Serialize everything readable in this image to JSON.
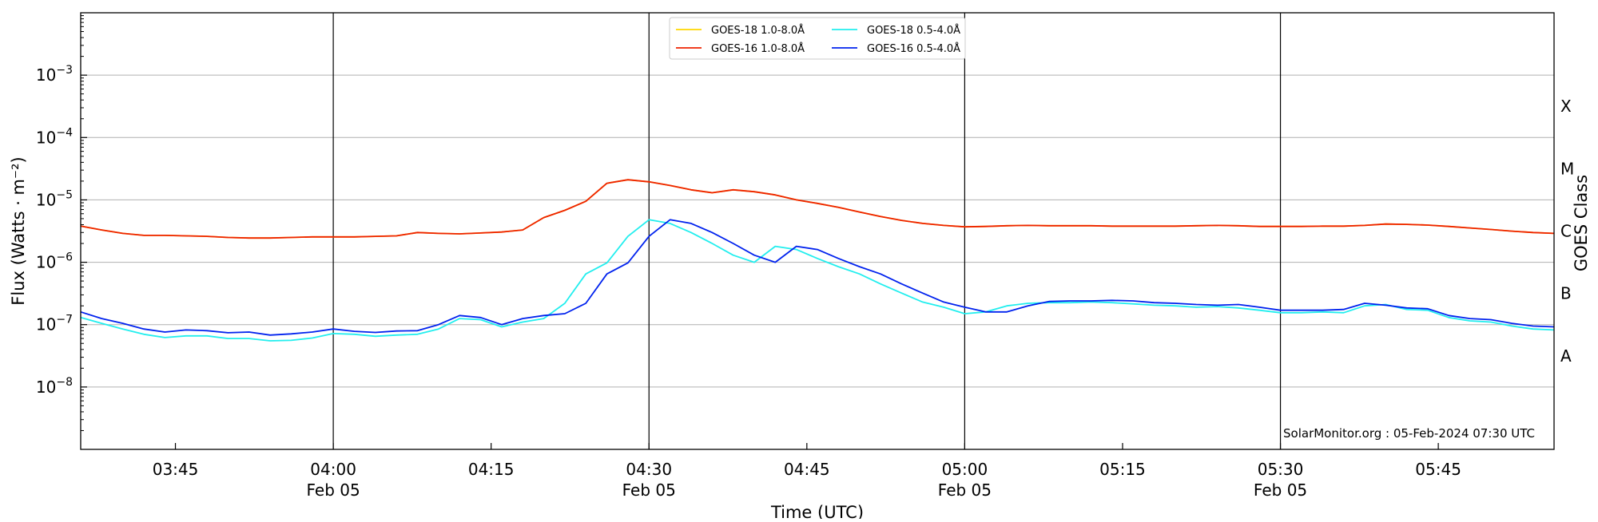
{
  "chart_data": {
    "type": "line",
    "xlabel": "Time (UTC)",
    "ylabel": "Flux (Watts · m⁻²)",
    "y2label": "GOES Class",
    "credit": "SolarMonitor.org : 05-Feb-2024 07:30 UTC",
    "x_unit": "UTC time, 2024-02-05",
    "xlim": [
      "03:36",
      "05:56"
    ],
    "ylim": [
      1e-09,
      0.01
    ],
    "yscale": "log",
    "grid": "horizontal gridlines at each decade; vertical lines at each half hour",
    "legend": "top-center, two columns",
    "x_ticks": [
      {
        "time": "03:45",
        "label": "03:45",
        "date": ""
      },
      {
        "time": "04:00",
        "label": "04:00",
        "date": "Feb 05"
      },
      {
        "time": "04:15",
        "label": "04:15",
        "date": ""
      },
      {
        "time": "04:30",
        "label": "04:30",
        "date": "Feb 05"
      },
      {
        "time": "04:45",
        "label": "04:45",
        "date": ""
      },
      {
        "time": "05:00",
        "label": "05:00",
        "date": "Feb 05"
      },
      {
        "time": "05:15",
        "label": "05:15",
        "date": ""
      },
      {
        "time": "05:30",
        "label": "05:30",
        "date": "Feb 05"
      },
      {
        "time": "05:45",
        "label": "05:45",
        "date": ""
      }
    ],
    "vlines": [
      "04:00",
      "04:30",
      "05:00",
      "05:30"
    ],
    "y_ticks": [
      {
        "value": 1e-08,
        "base": "10",
        "exp": "−8"
      },
      {
        "value": 1e-07,
        "base": "10",
        "exp": "−7"
      },
      {
        "value": 1e-06,
        "base": "10",
        "exp": "−6"
      },
      {
        "value": 1e-05,
        "base": "10",
        "exp": "−5"
      },
      {
        "value": 0.0001,
        "base": "10",
        "exp": "−4"
      },
      {
        "value": 0.001,
        "base": "10",
        "exp": "−3"
      }
    ],
    "classes": [
      {
        "label": "A",
        "value": 3.16e-08
      },
      {
        "label": "B",
        "value": 3.16e-07
      },
      {
        "label": "C",
        "value": 3.16e-06
      },
      {
        "label": "M",
        "value": 3.16e-05
      },
      {
        "label": "X",
        "value": 0.000316
      }
    ],
    "x": [
      "03:36",
      "03:38",
      "03:40",
      "03:42",
      "03:44",
      "03:46",
      "03:48",
      "03:50",
      "03:52",
      "03:54",
      "03:56",
      "03:58",
      "04:00",
      "04:02",
      "04:04",
      "04:06",
      "04:08",
      "04:10",
      "04:12",
      "04:14",
      "04:16",
      "04:18",
      "04:20",
      "04:22",
      "04:24",
      "04:26",
      "04:28",
      "04:30",
      "04:32",
      "04:34",
      "04:36",
      "04:38",
      "04:40",
      "04:42",
      "04:44",
      "04:46",
      "04:48",
      "04:50",
      "04:52",
      "04:54",
      "04:56",
      "04:58",
      "05:00",
      "05:02",
      "05:04",
      "05:06",
      "05:08",
      "05:10",
      "05:12",
      "05:14",
      "05:16",
      "05:18",
      "05:20",
      "05:22",
      "05:24",
      "05:26",
      "05:28",
      "05:30",
      "05:32",
      "05:34",
      "05:36",
      "05:38",
      "05:40",
      "05:42",
      "05:44",
      "05:46",
      "05:48",
      "05:50",
      "05:52",
      "05:54",
      "05:56"
    ],
    "series": [
      {
        "name": "GOES-18 1.0-8.0Å",
        "color": "#ffd700",
        "values": [
          3.8e-06,
          3.3e-06,
          2.9e-06,
          2.7e-06,
          2.7e-06,
          2.65e-06,
          2.6e-06,
          2.5e-06,
          2.45e-06,
          2.45e-06,
          2.5e-06,
          2.55e-06,
          2.55e-06,
          2.55e-06,
          2.6e-06,
          2.65e-06,
          3e-06,
          2.9e-06,
          2.85e-06,
          2.95e-06,
          3.05e-06,
          3.3e-06,
          5.2e-06,
          6.8e-06,
          9.5e-06,
          1.85e-05,
          2.1e-05,
          1.95e-05,
          1.7e-05,
          1.45e-05,
          1.3e-05,
          1.45e-05,
          1.35e-05,
          1.2e-05,
          1e-05,
          8.8e-06,
          7.6e-06,
          6.4e-06,
          5.4e-06,
          4.7e-06,
          4.2e-06,
          3.9e-06,
          3.7e-06,
          3.75e-06,
          3.85e-06,
          3.9e-06,
          3.85e-06,
          3.85e-06,
          3.85e-06,
          3.8e-06,
          3.8e-06,
          3.8e-06,
          3.8e-06,
          3.85e-06,
          3.9e-06,
          3.85e-06,
          3.75e-06,
          3.75e-06,
          3.75e-06,
          3.8e-06,
          3.8e-06,
          3.9e-06,
          4.1e-06,
          4.05e-06,
          3.95e-06,
          3.75e-06,
          3.55e-06,
          3.35e-06,
          3.15e-06,
          3e-06,
          2.9e-06
        ]
      },
      {
        "name": "GOES-16 1.0-8.0Å",
        "color": "#ee2200",
        "values": [
          3.8e-06,
          3.3e-06,
          2.9e-06,
          2.7e-06,
          2.7e-06,
          2.65e-06,
          2.6e-06,
          2.5e-06,
          2.45e-06,
          2.45e-06,
          2.5e-06,
          2.55e-06,
          2.55e-06,
          2.55e-06,
          2.6e-06,
          2.65e-06,
          3e-06,
          2.9e-06,
          2.85e-06,
          2.95e-06,
          3.05e-06,
          3.3e-06,
          5.2e-06,
          6.8e-06,
          9.5e-06,
          1.85e-05,
          2.1e-05,
          1.95e-05,
          1.7e-05,
          1.45e-05,
          1.3e-05,
          1.45e-05,
          1.35e-05,
          1.2e-05,
          1e-05,
          8.8e-06,
          7.6e-06,
          6.4e-06,
          5.4e-06,
          4.7e-06,
          4.2e-06,
          3.9e-06,
          3.7e-06,
          3.75e-06,
          3.85e-06,
          3.9e-06,
          3.85e-06,
          3.85e-06,
          3.85e-06,
          3.8e-06,
          3.8e-06,
          3.8e-06,
          3.8e-06,
          3.85e-06,
          3.9e-06,
          3.85e-06,
          3.75e-06,
          3.75e-06,
          3.75e-06,
          3.8e-06,
          3.8e-06,
          3.9e-06,
          4.1e-06,
          4.05e-06,
          3.95e-06,
          3.75e-06,
          3.55e-06,
          3.35e-06,
          3.15e-06,
          3e-06,
          2.9e-06
        ]
      },
      {
        "name": "GOES-18 0.5-4.0Å",
        "color": "#22eeee",
        "values": [
          1.3e-07,
          1.05e-07,
          8.5e-08,
          7e-08,
          6.2e-08,
          6.6e-08,
          6.6e-08,
          6e-08,
          6e-08,
          5.5e-08,
          5.6e-08,
          6.1e-08,
          7.2e-08,
          7e-08,
          6.5e-08,
          6.8e-08,
          7e-08,
          8.5e-08,
          1.25e-07,
          1.2e-07,
          9.2e-08,
          1.1e-07,
          1.25e-07,
          2.2e-07,
          6.5e-07,
          9.8e-07,
          2.6e-06,
          4.8e-06,
          4.2e-06,
          3e-06,
          2e-06,
          1.3e-06,
          1e-06,
          1.8e-06,
          1.6e-06,
          1.15e-06,
          8.5e-07,
          6.5e-07,
          4.5e-07,
          3.2e-07,
          2.3e-07,
          1.9e-07,
          1.5e-07,
          1.6e-07,
          2e-07,
          2.2e-07,
          2.25e-07,
          2.25e-07,
          2.3e-07,
          2.25e-07,
          2.15e-07,
          2.05e-07,
          2e-07,
          1.9e-07,
          1.95e-07,
          1.85e-07,
          1.7e-07,
          1.55e-07,
          1.55e-07,
          1.6e-07,
          1.55e-07,
          2e-07,
          2.1e-07,
          1.75e-07,
          1.7e-07,
          1.3e-07,
          1.15e-07,
          1.1e-07,
          9.5e-08,
          8.5e-08,
          8.2e-08
        ]
      },
      {
        "name": "GOES-16 0.5-4.0Å",
        "color": "#0022ee",
        "values": [
          1.6e-07,
          1.25e-07,
          1.05e-07,
          8.5e-08,
          7.6e-08,
          8.2e-08,
          8e-08,
          7.4e-08,
          7.6e-08,
          6.8e-08,
          7.1e-08,
          7.6e-08,
          8.5e-08,
          7.8e-08,
          7.5e-08,
          7.9e-08,
          8e-08,
          1e-07,
          1.4e-07,
          1.3e-07,
          1e-07,
          1.25e-07,
          1.4e-07,
          1.5e-07,
          2.2e-07,
          6.5e-07,
          9.8e-07,
          2.6e-06,
          4.8e-06,
          4.2e-06,
          3e-06,
          2e-06,
          1.3e-06,
          1e-06,
          1.8e-06,
          1.6e-06,
          1.15e-06,
          8.5e-07,
          6.5e-07,
          4.5e-07,
          3.2e-07,
          2.3e-07,
          1.9e-07,
          1.6e-07,
          1.6e-07,
          2e-07,
          2.35e-07,
          2.4e-07,
          2.4e-07,
          2.45e-07,
          2.4e-07,
          2.25e-07,
          2.2e-07,
          2.1e-07,
          2.05e-07,
          2.1e-07,
          1.9e-07,
          1.7e-07,
          1.7e-07,
          1.7e-07,
          1.75e-07,
          2.2e-07,
          2.05e-07,
          1.85e-07,
          1.8e-07,
          1.4e-07,
          1.25e-07,
          1.2e-07,
          1.05e-07,
          9.5e-08,
          9.2e-08
        ]
      }
    ]
  }
}
